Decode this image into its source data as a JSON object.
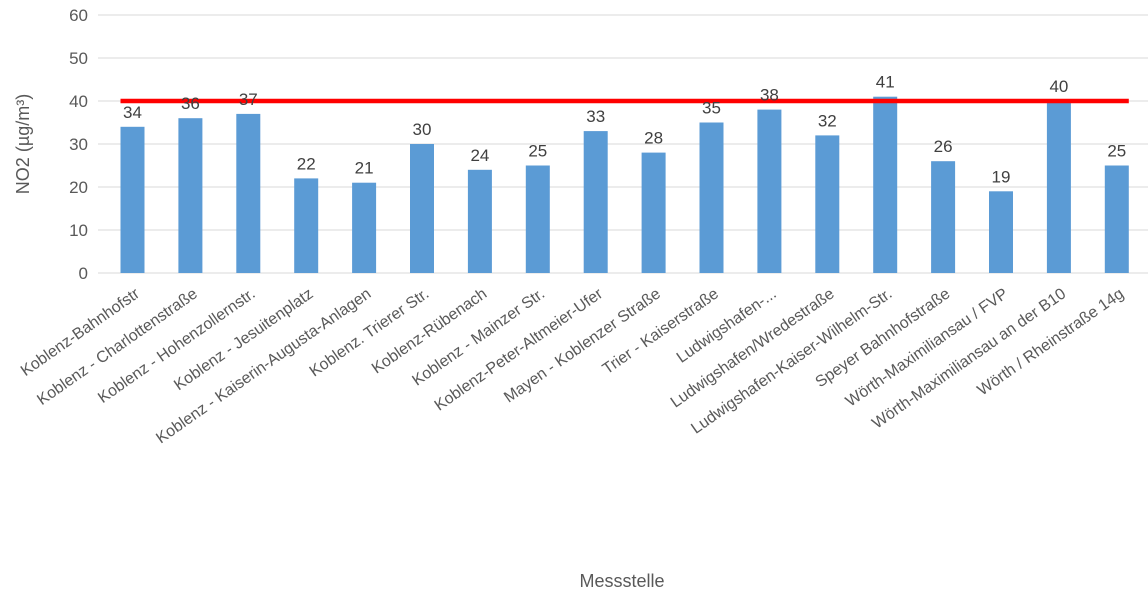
{
  "chart_data": {
    "type": "bar",
    "title": "",
    "xlabel": "Messstelle",
    "ylabel": "NO2 (µg/m³)",
    "ylim": [
      0,
      60
    ],
    "yticks": [
      0,
      10,
      20,
      30,
      40,
      50,
      60
    ],
    "grid": true,
    "categories": [
      "Koblenz-Bahnhofstr",
      "Koblenz - Charlottenstraße",
      "Koblenz - Hohenzollernstr.",
      "Koblenz - Jesuitenplatz",
      "Koblenz - Kaiserin-Augusta-Anlagen",
      "Koblenz. Trierer Str.",
      "Koblenz-Rübenach",
      "Koblenz - Mainzer Str.",
      "Koblenz-Peter-Altmeier-Ufer",
      "Mayen - Koblenzer Straße",
      "Trier - Kaiserstraße",
      "Ludwigshafen-...",
      "Ludwigshafen/Wredestraße",
      "Ludwigshafen-Kaiser-Wilhelm-Str.",
      "Speyer Bahnhofstraße",
      "Wörth-Maximiliansau / FVP",
      "Wörth-Maximiliansau an der B10",
      "Wörth / Rheinstraße 14g"
    ],
    "values": [
      34,
      36,
      37,
      22,
      21,
      30,
      24,
      25,
      33,
      28,
      35,
      38,
      32,
      41,
      26,
      19,
      40,
      25
    ],
    "data_labels": [
      "34",
      "36",
      "37",
      "22",
      "21",
      "30",
      "24",
      "25",
      "33",
      "28",
      "35",
      "38",
      "32",
      "41",
      "26",
      "19",
      "40",
      "25"
    ],
    "limit_line": {
      "value": 40,
      "color": "#ff0000"
    },
    "colors": {
      "bar": "#5b9bd5",
      "grid": "#d9d9d9",
      "axis_text": "#595959"
    }
  }
}
